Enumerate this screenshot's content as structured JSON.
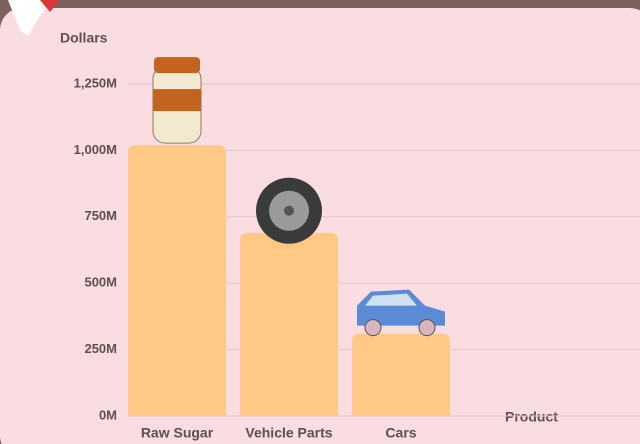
{
  "chart_data": {
    "type": "bar",
    "y_label": "Dollars",
    "x_label": "Product",
    "categories": [
      "Raw Sugar",
      "Vehicle Parts",
      "Cars"
    ],
    "values": [
      1020,
      690,
      310
    ],
    "color": "#fec987",
    "ylim": [
      0,
      1250
    ],
    "yticks": [
      {
        "value": 0,
        "label": "0M"
      },
      {
        "value": 250,
        "label": "250M"
      },
      {
        "value": 500,
        "label": "500M"
      },
      {
        "value": 750,
        "label": "750M"
      },
      {
        "value": 1000,
        "label": "1,000M"
      },
      {
        "value": 1250,
        "label": "1,250M"
      }
    ],
    "grid": true
  }
}
